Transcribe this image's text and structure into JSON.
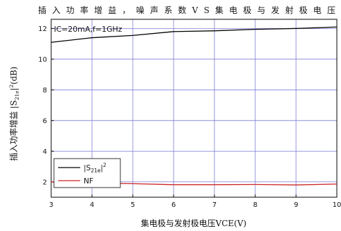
{
  "chart_data": {
    "type": "line",
    "title": "插入功率增益，噪声系数VS集电极与发射极电压",
    "xlabel": "集电极与发射极电压VCE(V)",
    "ylabel_prefix": "插入功率增益 |S",
    "ylabel_sub": "21e",
    "ylabel_suffix": "|",
    "ylabel_sup": "2",
    "ylabel_unit": "(dB)",
    "annotation": "IC=20mA,f=1GHz",
    "xlim": [
      3,
      10
    ],
    "ylim": [
      1,
      12.6
    ],
    "xticks": [
      "3",
      "4",
      "5",
      "6",
      "7",
      "8",
      "9",
      "10"
    ],
    "yticks": [
      "2",
      "4",
      "6",
      "8",
      "10",
      "12"
    ],
    "grid": true,
    "legend_position": "bottom-left",
    "x": [
      3,
      4,
      5,
      6,
      7,
      8,
      9,
      10
    ],
    "series": [
      {
        "name_main": "|S",
        "name_sub": "21e",
        "name_tail": "|",
        "name_sup": "2",
        "color": "#000000",
        "values": [
          11.1,
          11.4,
          11.55,
          11.8,
          11.85,
          11.95,
          12.0,
          12.1
        ]
      },
      {
        "name": "NF",
        "color": "#cc2222",
        "values": [
          2.0,
          1.93,
          1.88,
          1.82,
          1.82,
          1.83,
          1.8,
          1.86
        ]
      }
    ]
  }
}
